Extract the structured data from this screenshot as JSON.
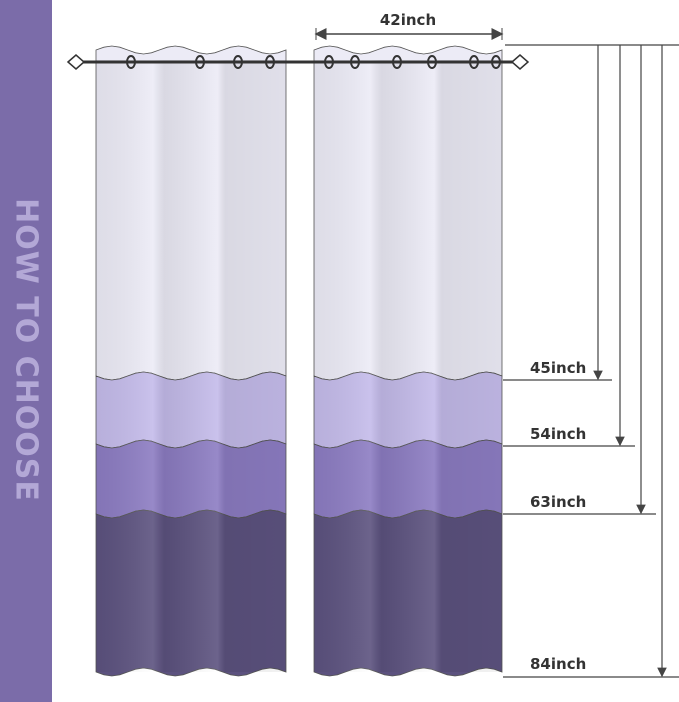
{
  "sidebar": {
    "title": "HOW TO CHOOSE",
    "color": "#7b6ca9"
  },
  "width_label": "42inch",
  "lengths": [
    {
      "label": "45inch",
      "color": "#ecebf6"
    },
    {
      "label": "54inch",
      "color": "#c4bbea"
    },
    {
      "label": "63inch",
      "color": "#8c7cc2"
    },
    {
      "label": "84inch",
      "color": "#5c527f"
    }
  ]
}
